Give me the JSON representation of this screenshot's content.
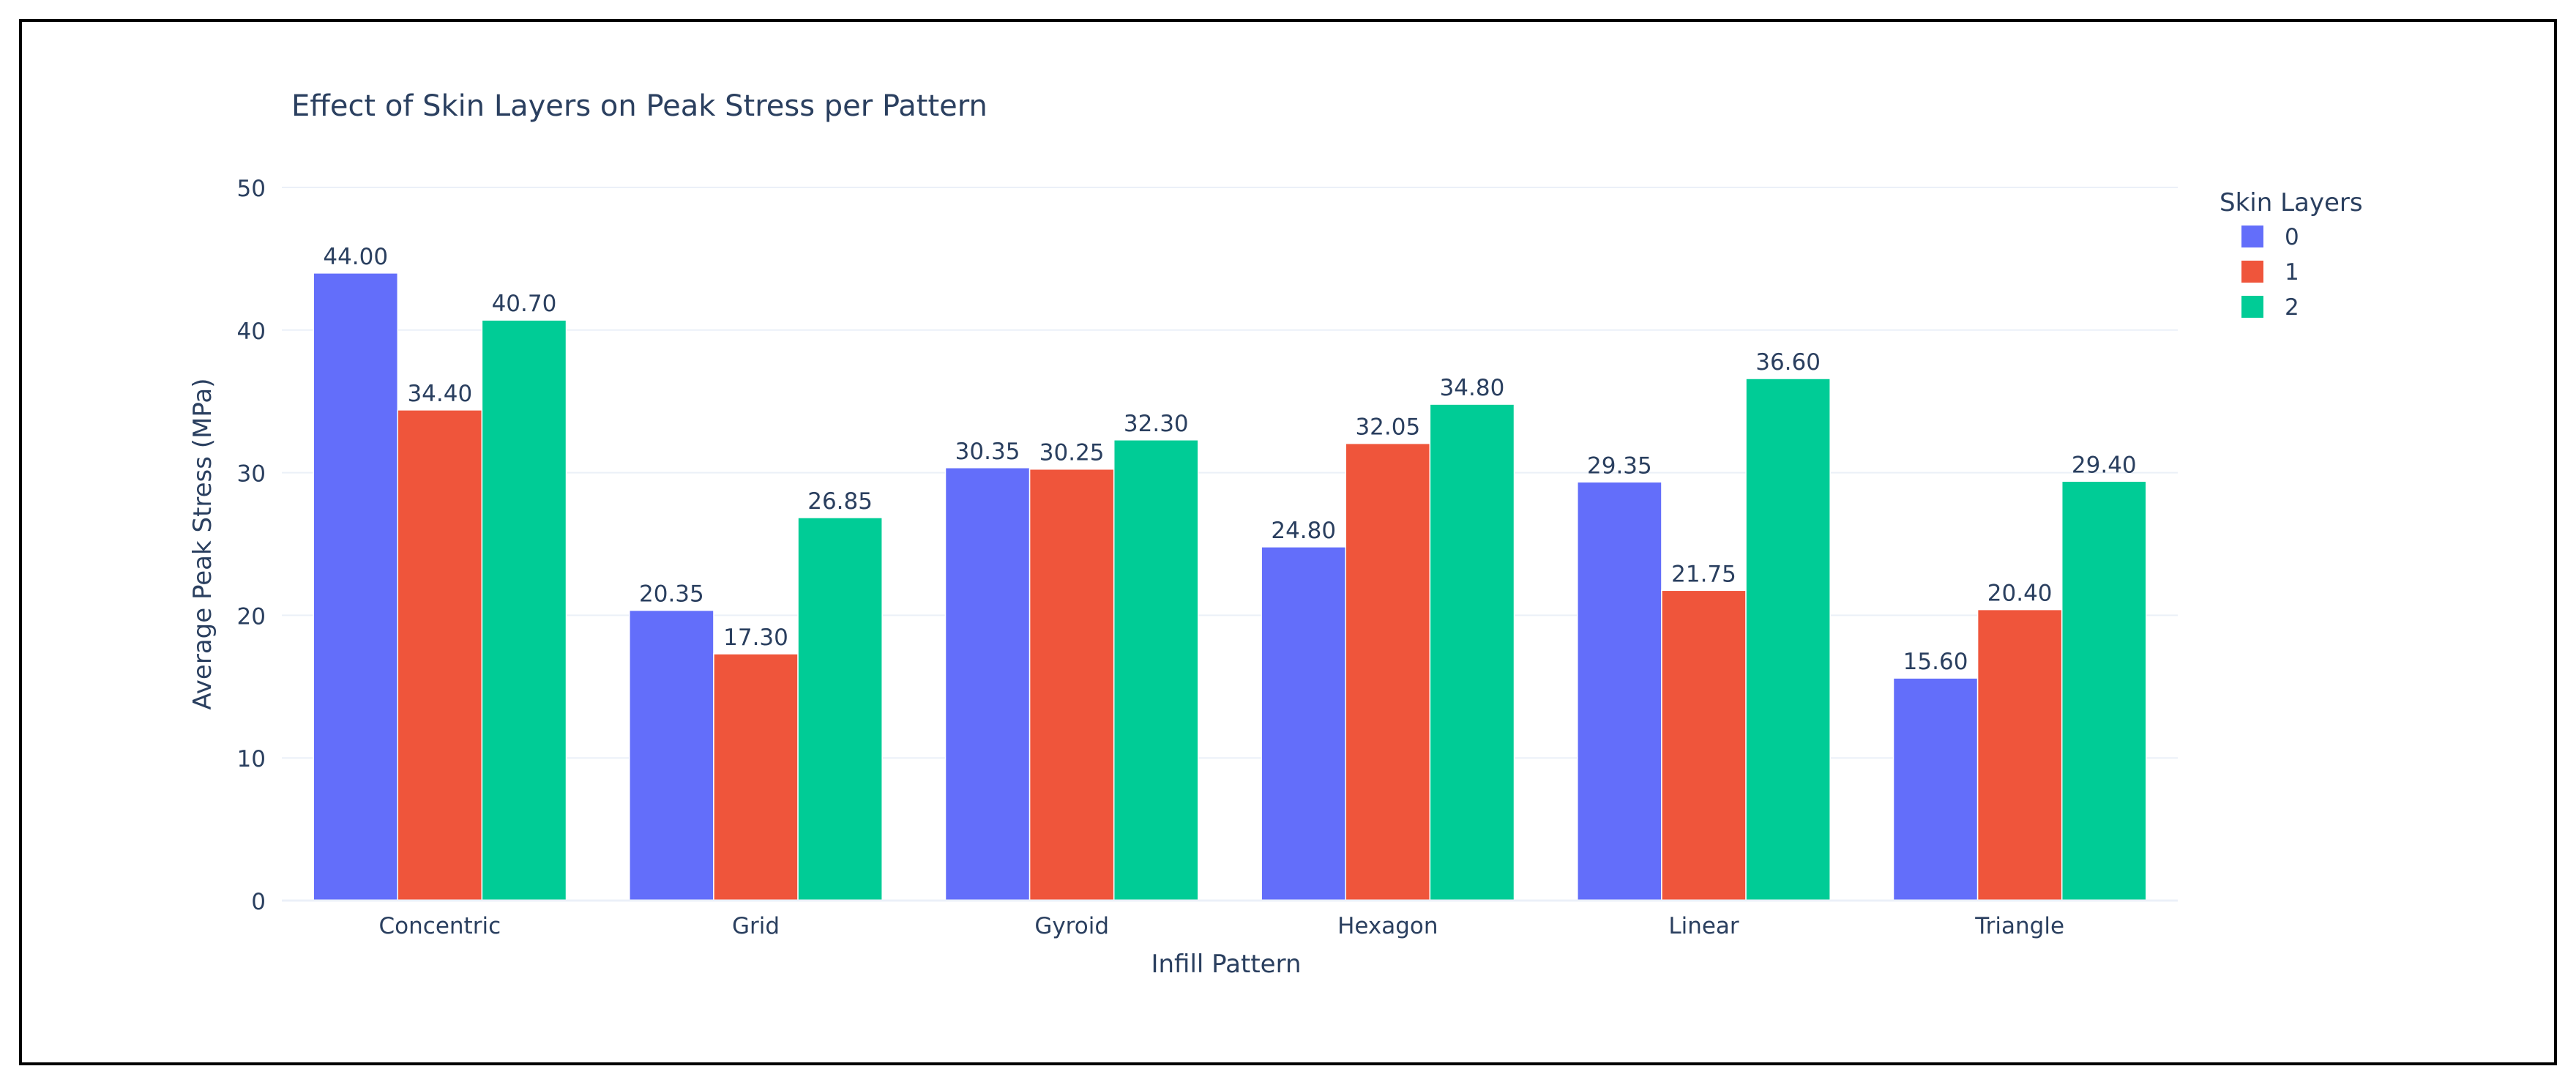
{
  "chart_data": {
    "type": "bar",
    "title": "Effect of Skin Layers on Peak Stress per Pattern",
    "xlabel": "Infill Pattern",
    "ylabel": "Average Peak Stress (MPa)",
    "ylim": [
      0,
      50
    ],
    "yticks": [
      0,
      10,
      20,
      30,
      40,
      50
    ],
    "grid": true,
    "legend_title": "Skin Layers",
    "legend_position": "top-right",
    "categories": [
      "Concentric",
      "Grid",
      "Gyroid",
      "Hexagon",
      "Linear",
      "Triangle"
    ],
    "series": [
      {
        "name": "0",
        "color": "#636efa",
        "values": [
          44.0,
          20.35,
          30.35,
          24.8,
          29.35,
          15.6
        ],
        "labels": [
          "44.00",
          "20.35",
          "30.35",
          "24.80",
          "29.35",
          "15.60"
        ]
      },
      {
        "name": "1",
        "color": "#ef553b",
        "values": [
          34.4,
          17.3,
          30.25,
          32.05,
          21.75,
          20.4
        ],
        "labels": [
          "34.40",
          "17.30",
          "30.25",
          "32.05",
          "21.75",
          "20.40"
        ]
      },
      {
        "name": "2",
        "color": "#00cc96",
        "values": [
          40.7,
          26.85,
          32.3,
          34.8,
          36.6,
          29.4
        ],
        "labels": [
          "40.70",
          "26.85",
          "32.30",
          "34.80",
          "36.60",
          "29.40"
        ]
      }
    ]
  }
}
